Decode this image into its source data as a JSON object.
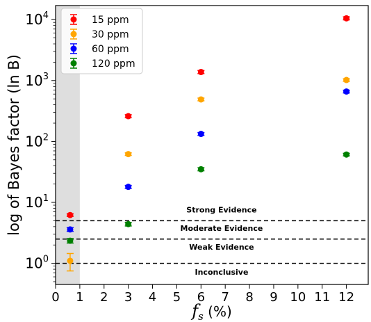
{
  "chart_data": {
    "type": "scatter",
    "xlabel_symbol": "f",
    "xlabel_subscript": "s",
    "xlabel_unit": "(%)",
    "ylabel": "log of Bayes factor (ln B)",
    "yscale": "log",
    "xlim": [
      0,
      12.9
    ],
    "ylim": [
      0.45,
      17000
    ],
    "xticks": [
      0,
      1,
      2,
      3,
      4,
      5,
      6,
      7,
      8,
      9,
      10,
      11,
      12
    ],
    "yticks": [
      1,
      10,
      100,
      1000,
      10000
    ],
    "ytick_labels": [
      {
        "base": "10",
        "exp": "0"
      },
      {
        "base": "10",
        "exp": "1"
      },
      {
        "base": "10",
        "exp": "2"
      },
      {
        "base": "10",
        "exp": "3"
      },
      {
        "base": "10",
        "exp": "4"
      }
    ],
    "shaded_region": {
      "x0": 0,
      "x1": 1,
      "color": "#dedede"
    },
    "threshold_lines": [
      {
        "y": 1.0,
        "label": "Inconclusive"
      },
      {
        "y": 2.5,
        "label": "Weak Evidence"
      },
      {
        "y": 5.0,
        "label": "Moderate Evidence"
      }
    ],
    "threshold_texts": [
      {
        "label": "Strong Evidence",
        "x": 6.85,
        "y": 7.6
      },
      {
        "label": "Moderate Evidence",
        "x": 6.85,
        "y": 3.8
      },
      {
        "label": "Weak Evidence",
        "x": 6.85,
        "y": 1.85
      },
      {
        "label": "Inconclusive",
        "x": 6.85,
        "y": 0.72
      }
    ],
    "series": [
      {
        "name": "15 ppm",
        "color": "#ff0000",
        "points": [
          {
            "x": 0.6,
            "y": 6.2,
            "err": 0.3
          },
          {
            "x": 3,
            "y": 260,
            "err": 15
          },
          {
            "x": 6,
            "y": 1380,
            "err": 80
          },
          {
            "x": 12,
            "y": 10500,
            "err": 600
          }
        ]
      },
      {
        "name": "30 ppm",
        "color": "#ffa500",
        "points": [
          {
            "x": 0.6,
            "y": 1.1,
            "err": 0.35
          },
          {
            "x": 3,
            "y": 62,
            "err": 3
          },
          {
            "x": 6,
            "y": 490,
            "err": 25
          },
          {
            "x": 12,
            "y": 1020,
            "err": 50
          }
        ]
      },
      {
        "name": "60 ppm",
        "color": "#0000ff",
        "points": [
          {
            "x": 0.6,
            "y": 3.6,
            "err": 0.25
          },
          {
            "x": 3,
            "y": 18,
            "err": 1
          },
          {
            "x": 6,
            "y": 133,
            "err": 7
          },
          {
            "x": 12,
            "y": 660,
            "err": 35
          }
        ]
      },
      {
        "name": "120 ppm",
        "color": "#008000",
        "points": [
          {
            "x": 0.6,
            "y": 2.35,
            "err": 0.2
          },
          {
            "x": 3,
            "y": 4.4,
            "err": 0.3
          },
          {
            "x": 6,
            "y": 35,
            "err": 2
          },
          {
            "x": 12,
            "y": 61,
            "err": 3
          }
        ]
      }
    ],
    "legend_position": "top-left",
    "grid": false
  }
}
